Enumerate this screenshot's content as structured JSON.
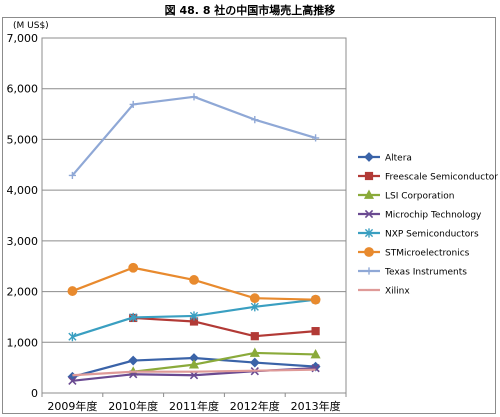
{
  "title": "図 48. 8 社の中国市場売上高推移",
  "unit_label": "(M US$)",
  "chart_data": {
    "type": "line",
    "title": "図 48. 8 社の中国市場売上高推移",
    "xlabel": "",
    "ylabel": "(M US$)",
    "categories": [
      "2009年度",
      "2010年度",
      "2011年度",
      "2012年度",
      "2013年度"
    ],
    "ylim": [
      0,
      7000
    ],
    "yticks": [
      0,
      1000,
      2000,
      3000,
      4000,
      5000,
      6000,
      7000
    ],
    "ytick_labels": [
      "0",
      "1,000",
      "2,000",
      "3,000",
      "4,000",
      "5,000",
      "6,000",
      "7,000"
    ],
    "grid": true,
    "legend_position": "right",
    "series": [
      {
        "name": "Altera",
        "color": "#3a63a8",
        "marker": "diamond",
        "values": [
          320,
          640,
          690,
          600,
          520
        ]
      },
      {
        "name": "Freescale Semiconductor",
        "color": "#b23a36",
        "marker": "square",
        "values": [
          null,
          1480,
          1410,
          1120,
          1220
        ]
      },
      {
        "name": "LSI Corporation",
        "color": "#8aaa3a",
        "marker": "triangle",
        "values": [
          null,
          420,
          560,
          790,
          760
        ]
      },
      {
        "name": "Microchip Technology",
        "color": "#6a4a91",
        "marker": "x",
        "values": [
          240,
          370,
          350,
          430,
          490
        ]
      },
      {
        "name": "NXP Semiconductors",
        "color": "#3a9fc1",
        "marker": "star",
        "values": [
          1110,
          1490,
          1520,
          1700,
          1840
        ]
      },
      {
        "name": "STMicroelectronics",
        "color": "#e88a2e",
        "marker": "circle",
        "values": [
          2010,
          2470,
          2230,
          1870,
          1840
        ]
      },
      {
        "name": "Texas Instruments",
        "color": "#8fa8d6",
        "marker": "plus",
        "values": [
          4290,
          5690,
          5840,
          5390,
          5030
        ]
      },
      {
        "name": "Xilinx",
        "color": "#df9a98",
        "marker": "none",
        "values": [
          350,
          420,
          420,
          440,
          460
        ]
      }
    ]
  }
}
